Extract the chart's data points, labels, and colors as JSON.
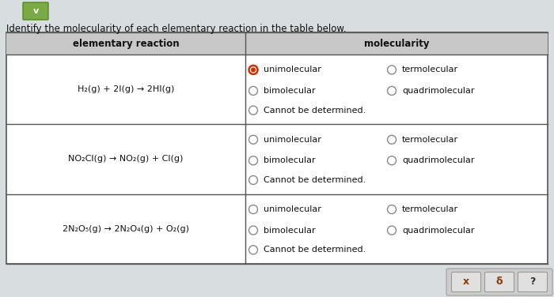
{
  "title": "Identify the molecularity of each elementary reaction in the table below.",
  "header_col1": "elementary reaction",
  "header_col2": "molecularity",
  "reactions": [
    "H₂(g) + 2I(g) → 2HI(g)",
    "NO₂Cl(g) → NO₂(g) + Cl(g)",
    "2N₂O₅(g) → 2N₂O₄(g) + O₂(g)"
  ],
  "bg_color": "#d8dde0",
  "table_bg": "#ffffff",
  "header_bg": "#c8c8c8",
  "border_color": "#555555",
  "text_color": "#111111",
  "selected_color": "#cc3300",
  "selected_outer": "#cc3300",
  "unselected_color": "#888888",
  "button_bg": "#d8d8d8",
  "button_border": "#999999",
  "button_text_color": "#8B3A00",
  "v_btn_color": "#7aaa44",
  "v_btn_border": "#558822"
}
